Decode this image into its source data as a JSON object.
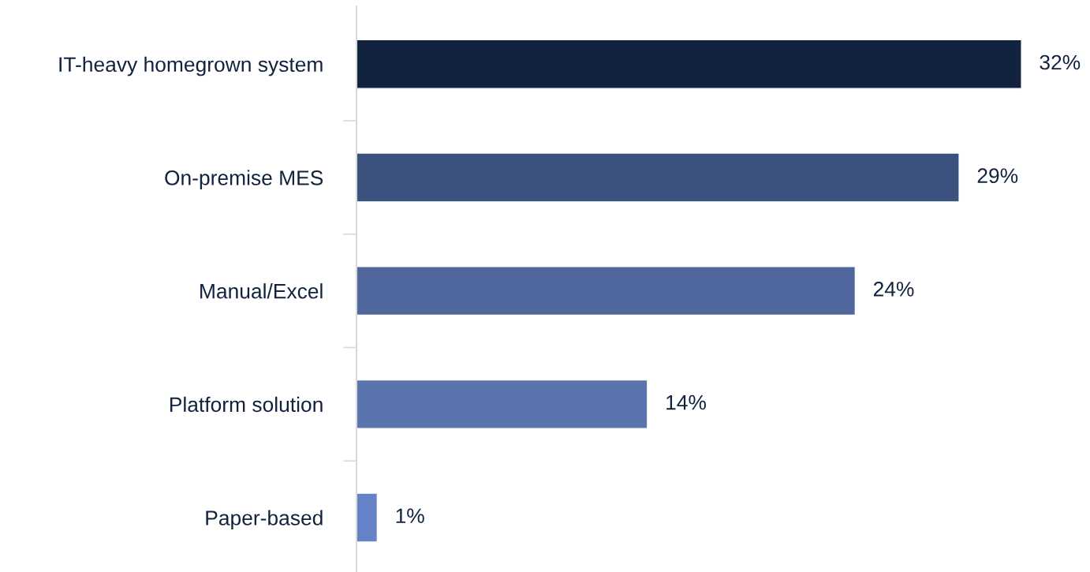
{
  "chart_data": {
    "type": "bar",
    "orientation": "horizontal",
    "categories": [
      "IT-heavy homegrown system",
      "On-premise MES",
      "Manual/Excel",
      "Platform solution",
      "Paper-based"
    ],
    "values": [
      32,
      29,
      24,
      14,
      1
    ],
    "colors": [
      "#12233f",
      "#3b517e",
      "#4f679c",
      "#5a74ad",
      "#6482c7"
    ],
    "value_labels": [
      "32%",
      "29%",
      "24%",
      "14%",
      "1%"
    ],
    "grid": false,
    "legend": false
  }
}
